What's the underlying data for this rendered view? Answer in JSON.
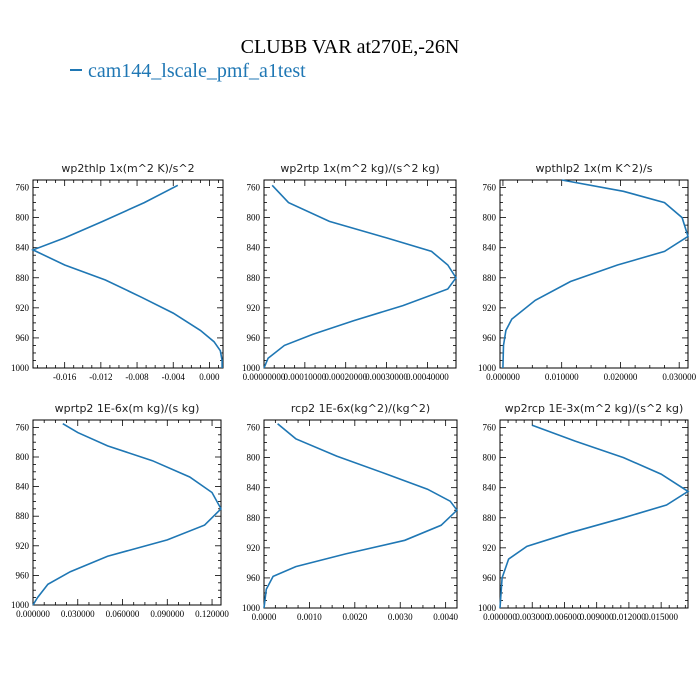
{
  "figure_title": "CLUBB VAR at270E,-26N",
  "legend_label": "cam144_lscale_pmf_a1test",
  "line_color": "#1f77b4",
  "chart_data": [
    {
      "type": "line",
      "title": "wp2thlp  1x(m^2 K)/s^2",
      "xlim": [
        -0.0195,
        0.0015
      ],
      "ylim": [
        1000,
        750
      ],
      "xticks": [
        -0.016,
        -0.012,
        -0.008,
        -0.004,
        0.0
      ],
      "xtick_labels": [
        "-0.016",
        "-0.012",
        "-0.008",
        "-0.004",
        "0.000"
      ],
      "yticks": [
        760,
        800,
        840,
        880,
        920,
        960,
        1000
      ],
      "ytick_labels": [
        "760",
        "800",
        "840",
        "880",
        "920",
        "960",
        "1000"
      ],
      "series": [
        {
          "x": [
            -0.0035,
            -0.0072,
            -0.0118,
            -0.016,
            -0.0195,
            -0.016,
            -0.0115,
            -0.0075,
            -0.004,
            -0.001,
            0.0005,
            0.0012,
            0.0014,
            0.0014
          ],
          "y": [
            757,
            780,
            805,
            827,
            843,
            863,
            883,
            906,
            927,
            950,
            965,
            977,
            990,
            1000
          ]
        }
      ]
    },
    {
      "type": "line",
      "title": "wp2rtp  1x(m^2 kg)/(s^2 kg)",
      "xlim": [
        0.0,
        0.00047
      ],
      "ylim": [
        1000,
        750
      ],
      "xticks": [
        0.0,
        0.0001,
        0.0002,
        0.0003,
        0.0004
      ],
      "xtick_labels": [
        "0.00000000",
        "0.00010000",
        "0.00020000",
        "0.00030000",
        "0.00040000"
      ],
      "yticks": [
        760,
        800,
        840,
        880,
        920,
        960,
        1000
      ],
      "ytick_labels": [
        "760",
        "800",
        "840",
        "880",
        "920",
        "960",
        "1000"
      ],
      "series": [
        {
          "x": [
            2e-05,
            6e-05,
            0.00016,
            0.0003,
            0.00041,
            0.00045,
            0.00047,
            0.00045,
            0.00034,
            0.00022,
            0.00012,
            5e-05,
            1e-05,
            0.0
          ],
          "y": [
            757,
            780,
            805,
            827,
            845,
            863,
            880,
            895,
            917,
            937,
            955,
            970,
            987,
            1000
          ]
        }
      ]
    },
    {
      "type": "line",
      "title": "wpthlp2  1x(m K^2)/s",
      "xlim": [
        -0.0005,
        0.0315
      ],
      "ylim": [
        1000,
        750
      ],
      "xticks": [
        0.0,
        0.01,
        0.02,
        0.03
      ],
      "xtick_labels": [
        "0.000000",
        "0.010000",
        "0.020000",
        "0.030000"
      ],
      "yticks": [
        760,
        800,
        840,
        880,
        920,
        960,
        1000
      ],
      "ytick_labels": [
        "760",
        "800",
        "840",
        "880",
        "920",
        "960",
        "1000"
      ],
      "series": [
        {
          "x": [
            0.01,
            0.0205,
            0.0275,
            0.0305,
            0.0315,
            0.0275,
            0.0195,
            0.0115,
            0.0055,
            0.0015,
            0.0005,
            0.0001,
            0.0
          ],
          "y": [
            750,
            765,
            780,
            800,
            825,
            845,
            863,
            885,
            910,
            935,
            950,
            970,
            1000
          ]
        }
      ]
    },
    {
      "type": "line",
      "title": "wprtp2  1E-6x(m kg)/(s kg)",
      "xlim": [
        0.0,
        0.126
      ],
      "ylim": [
        1000,
        750
      ],
      "xticks": [
        0.0,
        0.03,
        0.06,
        0.09,
        0.12
      ],
      "xtick_labels": [
        "0.000000",
        "0.030000",
        "0.060000",
        "0.090000",
        "0.120000"
      ],
      "yticks": [
        760,
        800,
        840,
        880,
        920,
        960,
        1000
      ],
      "ytick_labels": [
        "760",
        "800",
        "840",
        "880",
        "920",
        "960",
        "1000"
      ],
      "series": [
        {
          "x": [
            0.02,
            0.03,
            0.05,
            0.08,
            0.105,
            0.12,
            0.126,
            0.115,
            0.09,
            0.05,
            0.025,
            0.01,
            0.003,
            0.0
          ],
          "y": [
            755,
            767,
            785,
            805,
            827,
            848,
            870,
            892,
            912,
            934,
            955,
            972,
            990,
            1000
          ]
        }
      ]
    },
    {
      "type": "line",
      "title": "rcp2  1E-6x(kg^2)/(kg^2)",
      "xlim": [
        0.0,
        0.00425
      ],
      "ylim": [
        1000,
        750
      ],
      "xticks": [
        0.0,
        0.001,
        0.002,
        0.003,
        0.004
      ],
      "xtick_labels": [
        "0.0000",
        "0.0010",
        "0.0020",
        "0.0030",
        "0.0040"
      ],
      "yticks": [
        760,
        800,
        840,
        880,
        920,
        960,
        1000
      ],
      "ytick_labels": [
        "760",
        "800",
        "840",
        "880",
        "920",
        "960",
        "1000"
      ],
      "series": [
        {
          "x": [
            0.0003,
            0.0007,
            0.0016,
            0.0027,
            0.0036,
            0.0041,
            0.00425,
            0.0039,
            0.0031,
            0.0018,
            0.0007,
            0.0002,
            5e-05,
            0.0
          ],
          "y": [
            755,
            775,
            798,
            822,
            842,
            858,
            870,
            890,
            910,
            928,
            945,
            958,
            975,
            1000
          ]
        }
      ]
    },
    {
      "type": "line",
      "title": "wp2rcp  1E-3x(m^2 kg)/(s^2 kg)",
      "xlim": [
        0.0,
        0.0175
      ],
      "ylim": [
        1000,
        750
      ],
      "xticks": [
        0.0,
        0.003,
        0.006,
        0.009,
        0.012,
        0.015
      ],
      "xtick_labels": [
        "0.000000",
        "0.003000",
        "0.006000",
        "0.009000",
        "0.012000",
        "0.015000"
      ],
      "yticks": [
        760,
        800,
        840,
        880,
        920,
        960,
        1000
      ],
      "ytick_labels": [
        "760",
        "800",
        "840",
        "880",
        "920",
        "960",
        "1000"
      ],
      "series": [
        {
          "x": [
            0.003,
            0.007,
            0.0115,
            0.015,
            0.0175,
            0.0155,
            0.0115,
            0.0065,
            0.0025,
            0.0008,
            0.0002,
            0.0
          ],
          "y": [
            757,
            778,
            800,
            822,
            845,
            863,
            880,
            900,
            918,
            935,
            960,
            1000
          ]
        }
      ]
    }
  ]
}
